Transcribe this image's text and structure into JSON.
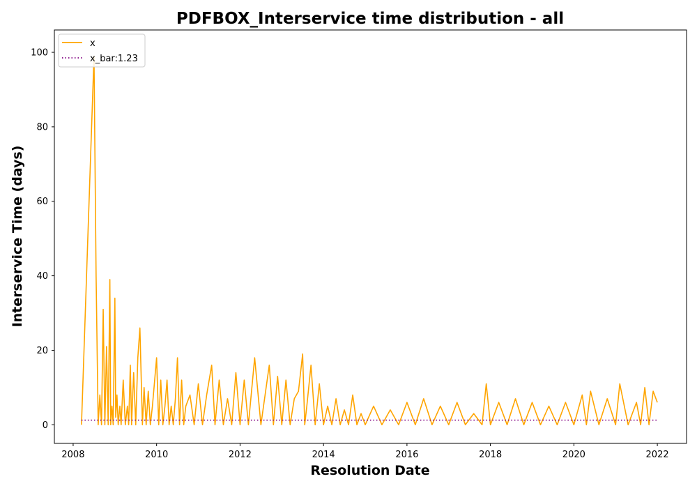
{
  "chart_data": {
    "type": "line",
    "title": "PDFBOX_Interservice time distribution - all",
    "xlabel": "Resolution Date",
    "ylabel": "Interservice Time (days)",
    "xlim": [
      2007.55,
      2022.7
    ],
    "ylim": [
      -5,
      106
    ],
    "x_ticks": [
      2008,
      2010,
      2012,
      2014,
      2016,
      2018,
      2020,
      2022
    ],
    "y_ticks": [
      0,
      20,
      40,
      60,
      80,
      100
    ],
    "grid": false,
    "legend_position": "top-left",
    "colors": {
      "x": "#ffa500",
      "x_bar": "#800080"
    },
    "series": [
      {
        "name": "x",
        "x": [
          2008.2,
          2008.5,
          2008.55,
          2008.6,
          2008.64,
          2008.68,
          2008.72,
          2008.76,
          2008.8,
          2008.84,
          2008.88,
          2008.9,
          2008.93,
          2008.96,
          2009.0,
          2009.02,
          2009.05,
          2009.08,
          2009.12,
          2009.15,
          2009.2,
          2009.25,
          2009.3,
          2009.33,
          2009.37,
          2009.4,
          2009.45,
          2009.5,
          2009.55,
          2009.6,
          2009.66,
          2009.7,
          2009.75,
          2009.8,
          2009.85,
          2009.9,
          2010.0,
          2010.05,
          2010.1,
          2010.15,
          2010.2,
          2010.25,
          2010.3,
          2010.35,
          2010.4,
          2010.45,
          2010.5,
          2010.55,
          2010.6,
          2010.65,
          2010.7,
          2010.8,
          2010.9,
          2011.0,
          2011.1,
          2011.2,
          2011.32,
          2011.4,
          2011.5,
          2011.6,
          2011.7,
          2011.8,
          2011.9,
          2012.0,
          2012.1,
          2012.2,
          2012.35,
          2012.5,
          2012.6,
          2012.7,
          2012.8,
          2012.9,
          2013.0,
          2013.1,
          2013.2,
          2013.3,
          2013.4,
          2013.5,
          2013.55,
          2013.6,
          2013.7,
          2013.8,
          2013.9,
          2014.0,
          2014.1,
          2014.2,
          2014.3,
          2014.4,
          2014.5,
          2014.6,
          2014.7,
          2014.8,
          2014.9,
          2015.0,
          2015.2,
          2015.4,
          2015.6,
          2015.8,
          2016.0,
          2016.2,
          2016.4,
          2016.6,
          2016.8,
          2017.0,
          2017.2,
          2017.4,
          2017.6,
          2017.8,
          2017.9,
          2018.0,
          2018.2,
          2018.4,
          2018.6,
          2018.8,
          2019.0,
          2019.2,
          2019.4,
          2019.6,
          2019.8,
          2020.0,
          2020.2,
          2020.3,
          2020.4,
          2020.6,
          2020.8,
          2021.0,
          2021.1,
          2021.3,
          2021.5,
          2021.6,
          2021.7,
          2021.8,
          2021.9,
          2022.0
        ],
        "y": [
          0,
          99,
          40,
          0,
          8,
          0,
          31,
          0,
          21,
          0,
          39,
          0,
          5,
          0,
          34,
          2,
          8,
          0,
          5,
          0,
          12,
          0,
          5,
          0,
          16,
          0,
          14,
          0,
          18,
          26,
          0,
          10,
          0,
          9,
          0,
          5,
          18,
          0,
          12,
          0,
          5,
          12,
          0,
          5,
          0,
          7,
          18,
          0,
          12,
          0,
          5,
          8,
          0,
          11,
          0,
          8,
          16,
          0,
          12,
          0,
          7,
          0,
          14,
          0,
          12,
          0,
          18,
          0,
          8,
          16,
          0,
          13,
          0,
          12,
          0,
          7,
          9,
          19,
          0,
          5,
          16,
          0,
          11,
          0,
          5,
          0,
          7,
          0,
          4,
          0,
          8,
          0,
          3,
          0,
          5,
          0,
          4,
          0,
          6,
          0,
          7,
          0,
          5,
          0,
          6,
          0,
          3,
          0,
          11,
          0,
          6,
          0,
          7,
          0,
          6,
          0,
          5,
          0,
          6,
          0,
          8,
          0,
          9,
          0,
          7,
          0,
          11,
          0,
          6,
          0,
          10,
          0,
          9,
          6
        ]
      },
      {
        "name": "x_bar:1.23",
        "x": [
          2008.2,
          2022.0
        ],
        "y": [
          1.23,
          1.23
        ]
      }
    ]
  }
}
